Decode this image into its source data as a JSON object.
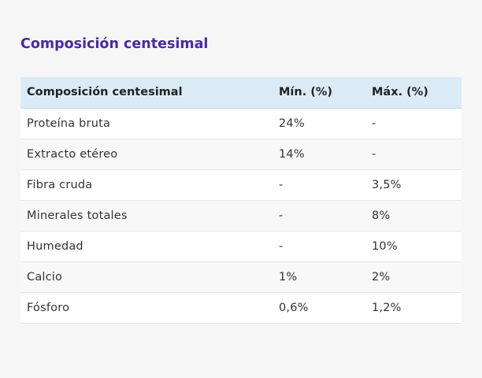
{
  "title": "Composición centesimal",
  "table": {
    "headers": [
      "Composición centesimal",
      "Mín. (%)",
      "Máx. (%)"
    ],
    "rows": [
      [
        "Proteína bruta",
        "24%",
        "-"
      ],
      [
        "Extracto etéreo",
        "14%",
        "-"
      ],
      [
        "Fibra cruda",
        "-",
        "3,5%"
      ],
      [
        "Minerales totales",
        "-",
        "8%"
      ],
      [
        "Humedad",
        "-",
        "10%"
      ],
      [
        "Calcio",
        "1%",
        "2%"
      ],
      [
        "Fósforo",
        "0,6%",
        "1,2%"
      ]
    ]
  }
}
